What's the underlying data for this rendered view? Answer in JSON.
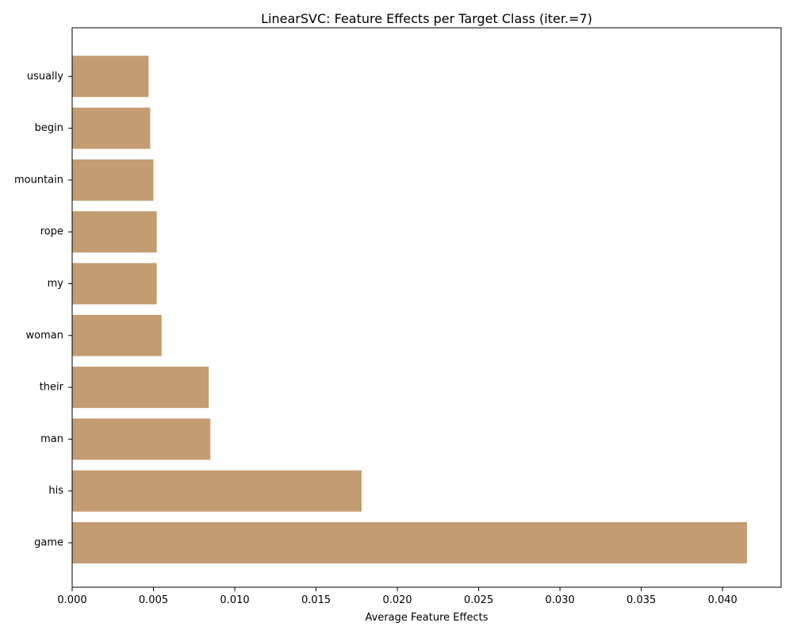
{
  "chart_data": {
    "type": "bar",
    "orientation": "horizontal",
    "title": "LinearSVC: Feature Effects per Target Class (iter.=7)",
    "xlabel": "Average Feature Effects",
    "ylabel": "",
    "categories": [
      "game",
      "his",
      "man",
      "their",
      "woman",
      "my",
      "rope",
      "mountain",
      "begin",
      "usually"
    ],
    "values": [
      0.0415,
      0.0178,
      0.0085,
      0.0084,
      0.0055,
      0.0052,
      0.0052,
      0.005,
      0.0048,
      0.0047
    ],
    "xlim": [
      0,
      0.0436
    ],
    "xticks": [
      0.0,
      0.005,
      0.01,
      0.015,
      0.02,
      0.025,
      0.03,
      0.035,
      0.04
    ],
    "xtick_labels": [
      "0.000",
      "0.005",
      "0.010",
      "0.015",
      "0.020",
      "0.025",
      "0.030",
      "0.035",
      "0.040"
    ],
    "bar_color": "#c49c71",
    "grid": false,
    "legend": "none"
  }
}
